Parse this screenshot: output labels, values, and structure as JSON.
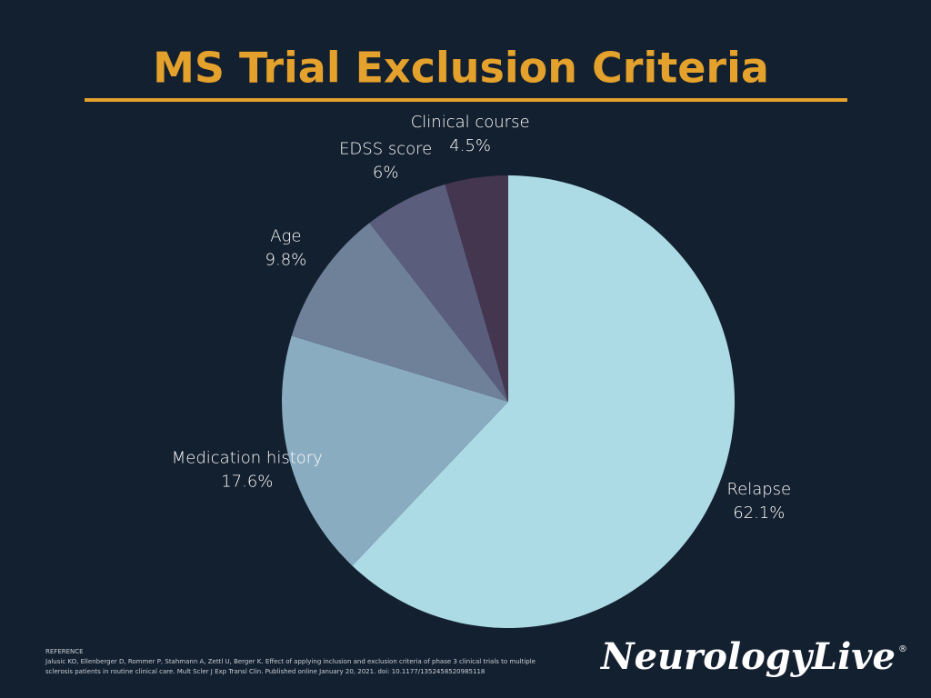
{
  "chart_data": {
    "type": "pie",
    "title": "MS Trial Exclusion Criteria",
    "categories": [
      "Relapse",
      "Medication history",
      "Age",
      "EDSS score",
      "Clinical course"
    ],
    "values": [
      62.1,
      17.6,
      9.8,
      6,
      4.5
    ],
    "value_labels": [
      "62.1%",
      "17.6%",
      "9.8%",
      "6%",
      "4.5%"
    ],
    "colors": [
      "#acdbe5",
      "#8aacc1",
      "#6f8199",
      "#5a5d7b",
      "#45364f"
    ]
  },
  "footer": {
    "reference_heading": "REFERENCE",
    "reference_lines": [
      "Jalusic KO, Ellenberger D, Rommer P, Stahmann A, Zettl U, Berger K. Effect of applying inclusion and exclusion criteria of phase 3 clinical trials to multiple",
      "sclerosis patients in routine clinical care. Mult Scler J Exp Transl Clin. Published online January 20, 2021. doi: 10.1177/1352458520985118"
    ],
    "brand": "NeurologyLive",
    "brand_mark": "®"
  }
}
